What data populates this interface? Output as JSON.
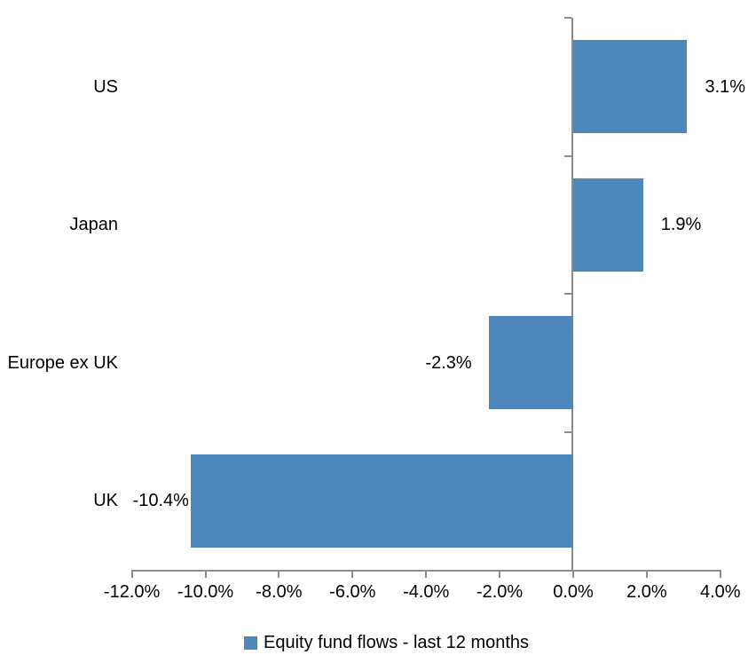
{
  "chart_data": {
    "type": "bar",
    "orientation": "horizontal",
    "title": "",
    "categories": [
      "US",
      "Japan",
      "Europe ex UK",
      "UK"
    ],
    "values": [
      3.1,
      1.9,
      -2.3,
      -10.4
    ],
    "data_labels": [
      "3.1%",
      "1.9%",
      "-2.3%",
      "-10.4%"
    ],
    "series_name": "Equity fund flows - last 12 months",
    "x_axis": {
      "min": -12,
      "max": 4,
      "tick_step": 2,
      "tick_values": [
        -12,
        -10,
        -8,
        -6,
        -4,
        -2,
        0,
        2,
        4
      ],
      "tick_labels": [
        "-12.0%",
        "-10.0%",
        "-8.0%",
        "-6.0%",
        "-4.0%",
        "-2.0%",
        "0.0%",
        "2.0%",
        "4.0%"
      ]
    },
    "grid": "off",
    "legend_position": "bottom-center",
    "colors": {
      "bar": "#4E87BC",
      "axis": "#8C8C8C",
      "text": "#000000",
      "background": "#FFFFFF"
    }
  },
  "legend": {
    "label": "Equity fund flows - last 12 months"
  }
}
